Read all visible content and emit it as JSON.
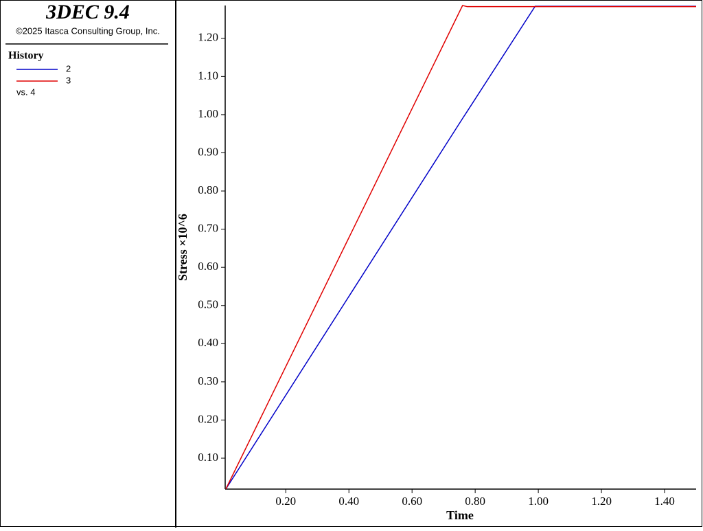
{
  "panel": {
    "title": "3DEC 9.4",
    "copyright": "©2025 Itasca Consulting Group, Inc.",
    "section": "History",
    "versus": "vs. 4"
  },
  "chart_data": {
    "type": "line",
    "x_label": "Time",
    "y_label": "Stress ×10^6",
    "x": [
      0.01,
      0.76,
      0.775,
      0.99,
      1.5
    ],
    "series": [
      {
        "name": "2",
        "color": "#0000c8",
        "values": [
          0.019,
          0.99,
          1.009,
          1.284,
          1.284
        ]
      },
      {
        "name": "3",
        "color": "#e00000",
        "values": [
          0.019,
          1.286,
          1.283,
          1.283,
          1.283
        ]
      }
    ],
    "xlim": [
      0.008,
      1.5
    ],
    "ylim": [
      0.019,
      1.286
    ],
    "xticks": [
      {
        "value": 0.2,
        "label": "0.20"
      },
      {
        "value": 0.4,
        "label": "0.40"
      },
      {
        "value": 0.6,
        "label": "0.60"
      },
      {
        "value": 0.8,
        "label": "0.80"
      },
      {
        "value": 1.0,
        "label": "1.00"
      },
      {
        "value": 1.2,
        "label": "1.20"
      },
      {
        "value": 1.4,
        "label": "1.40"
      }
    ],
    "yticks": [
      {
        "value": 0.1,
        "label": "0.10"
      },
      {
        "value": 0.2,
        "label": "0.20"
      },
      {
        "value": 0.3,
        "label": "0.30"
      },
      {
        "value": 0.4,
        "label": "0.40"
      },
      {
        "value": 0.5,
        "label": "0.50"
      },
      {
        "value": 0.6,
        "label": "0.60"
      },
      {
        "value": 0.7,
        "label": "0.70"
      },
      {
        "value": 0.8,
        "label": "0.80"
      },
      {
        "value": 0.9,
        "label": "0.90"
      },
      {
        "value": 1.0,
        "label": "1.00"
      },
      {
        "value": 1.1,
        "label": "1.10"
      },
      {
        "value": 1.2,
        "label": "1.20"
      }
    ]
  }
}
